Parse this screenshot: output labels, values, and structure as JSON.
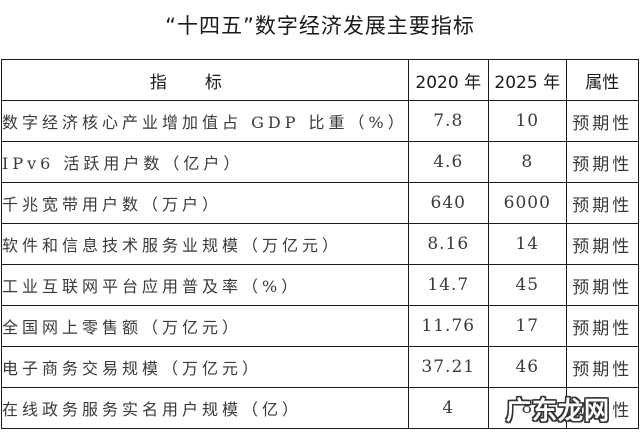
{
  "title": "“十四五”数字经济发展主要指标",
  "table": {
    "headers": {
      "indicator": "指标",
      "y2020": "2020 年",
      "y2025": "2025 年",
      "attribute": "属性"
    },
    "rows": [
      {
        "indicator": "数字经济核心产业增加值占 GDP 比重（%）",
        "y2020": "7.8",
        "y2025": "10",
        "attribute": "预期性"
      },
      {
        "indicator": "IPv6 活跃用户数（亿户）",
        "y2020": "4.6",
        "y2025": "8",
        "attribute": "预期性"
      },
      {
        "indicator": "千兆宽带用户数（万户）",
        "y2020": "640",
        "y2025": "6000",
        "attribute": "预期性"
      },
      {
        "indicator": "软件和信息技术服务业规模（万亿元）",
        "y2020": "8.16",
        "y2025": "14",
        "attribute": "预期性"
      },
      {
        "indicator": "工业互联网平台应用普及率（%）",
        "y2020": "14.7",
        "y2025": "45",
        "attribute": "预期性"
      },
      {
        "indicator": "全国网上零售额（万亿元）",
        "y2020": "11.76",
        "y2025": "17",
        "attribute": "预期性"
      },
      {
        "indicator": "电子商务交易规模（万亿元）",
        "y2020": "37.21",
        "y2025": "46",
        "attribute": "预期性"
      },
      {
        "indicator": "在线政务服务实名用户规模（亿）",
        "y2020": "4",
        "y2025": "8",
        "attribute": "预期性"
      }
    ]
  },
  "watermark": "广东龙网"
}
